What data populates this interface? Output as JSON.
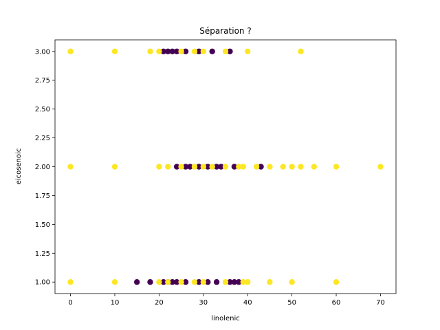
{
  "chart_data": {
    "type": "scatter",
    "title": "Séparation ?",
    "xlabel": "linolenic",
    "ylabel": "eicosenoic",
    "xlim": [
      -3.5,
      73.5
    ],
    "ylim": [
      0.9,
      3.1
    ],
    "xticks": [
      0,
      10,
      20,
      30,
      40,
      50,
      60,
      70
    ],
    "yticks": [
      1.0,
      1.25,
      1.5,
      1.75,
      2.0,
      2.25,
      2.5,
      2.75,
      3.0
    ],
    "ytick_labels": [
      "1.00",
      "1.25",
      "1.50",
      "1.75",
      "2.00",
      "2.25",
      "2.50",
      "2.75",
      "3.00"
    ],
    "grid": false,
    "colors": {
      "class_0": "#440154",
      "class_1": "#fde725"
    },
    "series": [
      {
        "points": [
          [
            15,
            1
          ],
          [
            18,
            1
          ],
          [
            21,
            1
          ],
          [
            22,
            1
          ],
          [
            23,
            1
          ],
          [
            24,
            1
          ],
          [
            26,
            1
          ],
          [
            29,
            1
          ],
          [
            31,
            1
          ],
          [
            33,
            1
          ],
          [
            36,
            1
          ],
          [
            37,
            1
          ],
          [
            38,
            1
          ],
          [
            24,
            2
          ],
          [
            26,
            2
          ],
          [
            27,
            2
          ],
          [
            29,
            2
          ],
          [
            31,
            2
          ],
          [
            33,
            2
          ],
          [
            34,
            2
          ],
          [
            37,
            2
          ],
          [
            43,
            2
          ],
          [
            21,
            3
          ],
          [
            22,
            3
          ],
          [
            23,
            3
          ],
          [
            24,
            3
          ],
          [
            26,
            3
          ],
          [
            29,
            3
          ],
          [
            32,
            3
          ],
          [
            36,
            3
          ]
        ],
        "color_key": "class_0"
      },
      {
        "points": [
          [
            0,
            1
          ],
          [
            10,
            1
          ],
          [
            20,
            1
          ],
          [
            22,
            1
          ],
          [
            25,
            1
          ],
          [
            28,
            1
          ],
          [
            30,
            1
          ],
          [
            35,
            1
          ],
          [
            39,
            1
          ],
          [
            40,
            1
          ],
          [
            45,
            1
          ],
          [
            50,
            1
          ],
          [
            60,
            1
          ],
          [
            0,
            2
          ],
          [
            10,
            2
          ],
          [
            20,
            2
          ],
          [
            22,
            2
          ],
          [
            25,
            2
          ],
          [
            28,
            2
          ],
          [
            30,
            2
          ],
          [
            32,
            2
          ],
          [
            35,
            2
          ],
          [
            38,
            2
          ],
          [
            39,
            2
          ],
          [
            42,
            2
          ],
          [
            45,
            2
          ],
          [
            48,
            2
          ],
          [
            50,
            2
          ],
          [
            52,
            2
          ],
          [
            55,
            2
          ],
          [
            60,
            2
          ],
          [
            70,
            2
          ],
          [
            0,
            3
          ],
          [
            10,
            3
          ],
          [
            18,
            3
          ],
          [
            20,
            3
          ],
          [
            25,
            3
          ],
          [
            28,
            3
          ],
          [
            30,
            3
          ],
          [
            35,
            3
          ],
          [
            40,
            3
          ],
          [
            52,
            3
          ]
        ],
        "color_key": "class_1"
      }
    ]
  }
}
